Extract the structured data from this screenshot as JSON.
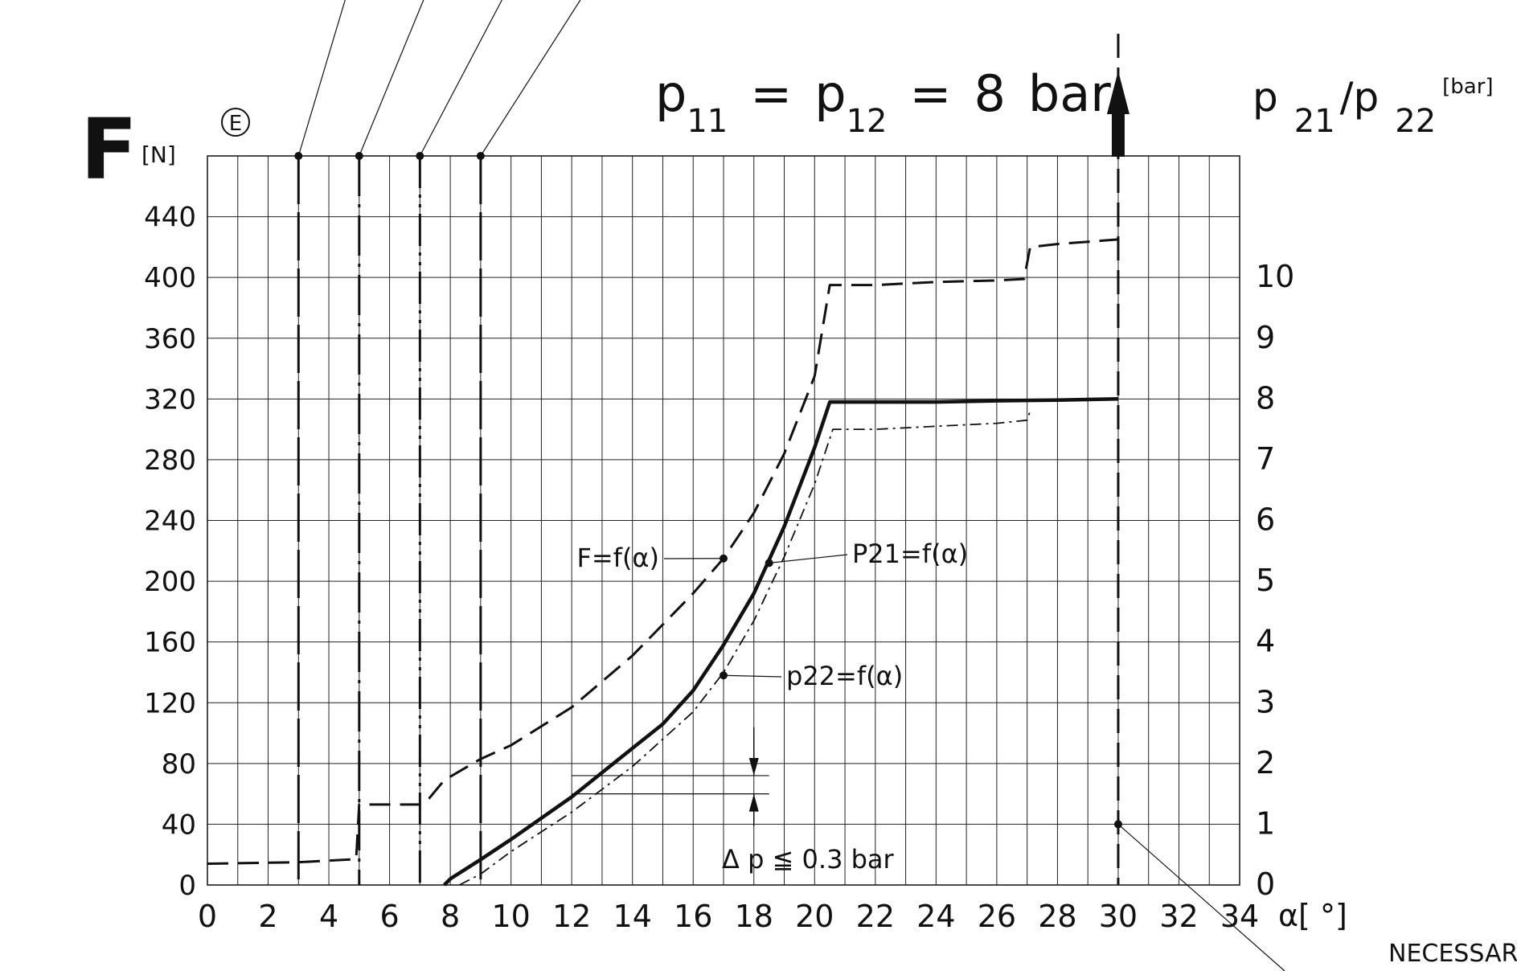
{
  "chart_data": {
    "type": "line",
    "title": "p11 = p12 = 8 bar",
    "title_parts": {
      "p_a": "p",
      "sub_a": "11",
      "eq_a": "=",
      "p_b": "p",
      "sub_b": "12",
      "eq_b": "=",
      "value": "8",
      "unit": "bar"
    },
    "marker_e": "E",
    "left_axis": {
      "label": "F",
      "unit": "[N]",
      "ylim": [
        0,
        480
      ],
      "ticks": [
        0,
        40,
        80,
        120,
        160,
        200,
        240,
        280,
        320,
        360,
        400,
        440
      ]
    },
    "right_axis": {
      "label_parts": {
        "p_a": "p",
        "sub_a": "21",
        "slash": "/p",
        "sub_b": "22",
        "unit": "[bar]"
      },
      "ylim": [
        0,
        12
      ],
      "ticks": [
        0,
        1,
        2,
        3,
        4,
        5,
        6,
        7,
        8,
        9,
        10
      ]
    },
    "x_axis": {
      "label": "α[ °]",
      "xlim": [
        0,
        34
      ],
      "ticks": [
        0,
        2,
        4,
        6,
        8,
        10,
        12,
        14,
        16,
        18,
        20,
        22,
        24,
        26,
        28,
        30,
        32,
        34
      ]
    },
    "grid": true,
    "series": [
      {
        "name": "F=f(α)",
        "axis": "left",
        "style": "dashed",
        "x": [
          0,
          3,
          4.9,
          5,
          6,
          7,
          7.3,
          7.8,
          9,
          10,
          12,
          14,
          16,
          17,
          18,
          19,
          20,
          20.5,
          22,
          24,
          26,
          26.9,
          27.1,
          28,
          30
        ],
        "y": [
          14,
          15,
          17,
          53,
          53,
          53,
          57,
          69,
          83,
          92,
          117,
          151,
          192,
          215,
          245,
          284,
          335,
          395,
          395,
          397,
          398,
          399,
          420,
          422,
          425
        ]
      },
      {
        "name": "P21=f(α)",
        "axis": "right",
        "style": "solid",
        "x": [
          7.8,
          8,
          9,
          10,
          12,
          14,
          15,
          16,
          17,
          18,
          19,
          20,
          20.5,
          22,
          24,
          26,
          28,
          30
        ],
        "y": [
          0,
          0.1,
          0.42,
          0.75,
          1.45,
          2.25,
          2.65,
          3.2,
          3.95,
          4.8,
          5.9,
          7.2,
          7.95,
          7.95,
          7.95,
          7.97,
          7.98,
          8.0
        ]
      },
      {
        "name": "p22=f(α)",
        "axis": "right",
        "style": "dash-dot",
        "x": [
          8.3,
          9,
          10,
          12,
          14,
          16,
          17,
          18,
          19,
          20,
          20.6,
          22,
          24,
          26,
          27,
          27.1
        ],
        "y": [
          0,
          0.18,
          0.55,
          1.2,
          1.95,
          2.85,
          3.5,
          4.35,
          5.4,
          6.6,
          7.5,
          7.5,
          7.55,
          7.6,
          7.65,
          7.8
        ]
      }
    ],
    "vertical_markers": [
      {
        "x": 3,
        "style": "long-dash"
      },
      {
        "x": 5,
        "style": "dash-dot"
      },
      {
        "x": 7,
        "style": "dash-dot-dot"
      },
      {
        "x": 9,
        "style": "long-dash"
      }
    ],
    "limit_line": {
      "x": 30,
      "note": "NECESSARY"
    },
    "annotations": {
      "f_label": "F=f(α)",
      "p21_label": "P21=f(α)",
      "p22_label": "p22=f(α)",
      "delta_p": "Δ p ≦ 0.3 bar",
      "delta_p_range": [
        1.5,
        1.8
      ]
    }
  }
}
